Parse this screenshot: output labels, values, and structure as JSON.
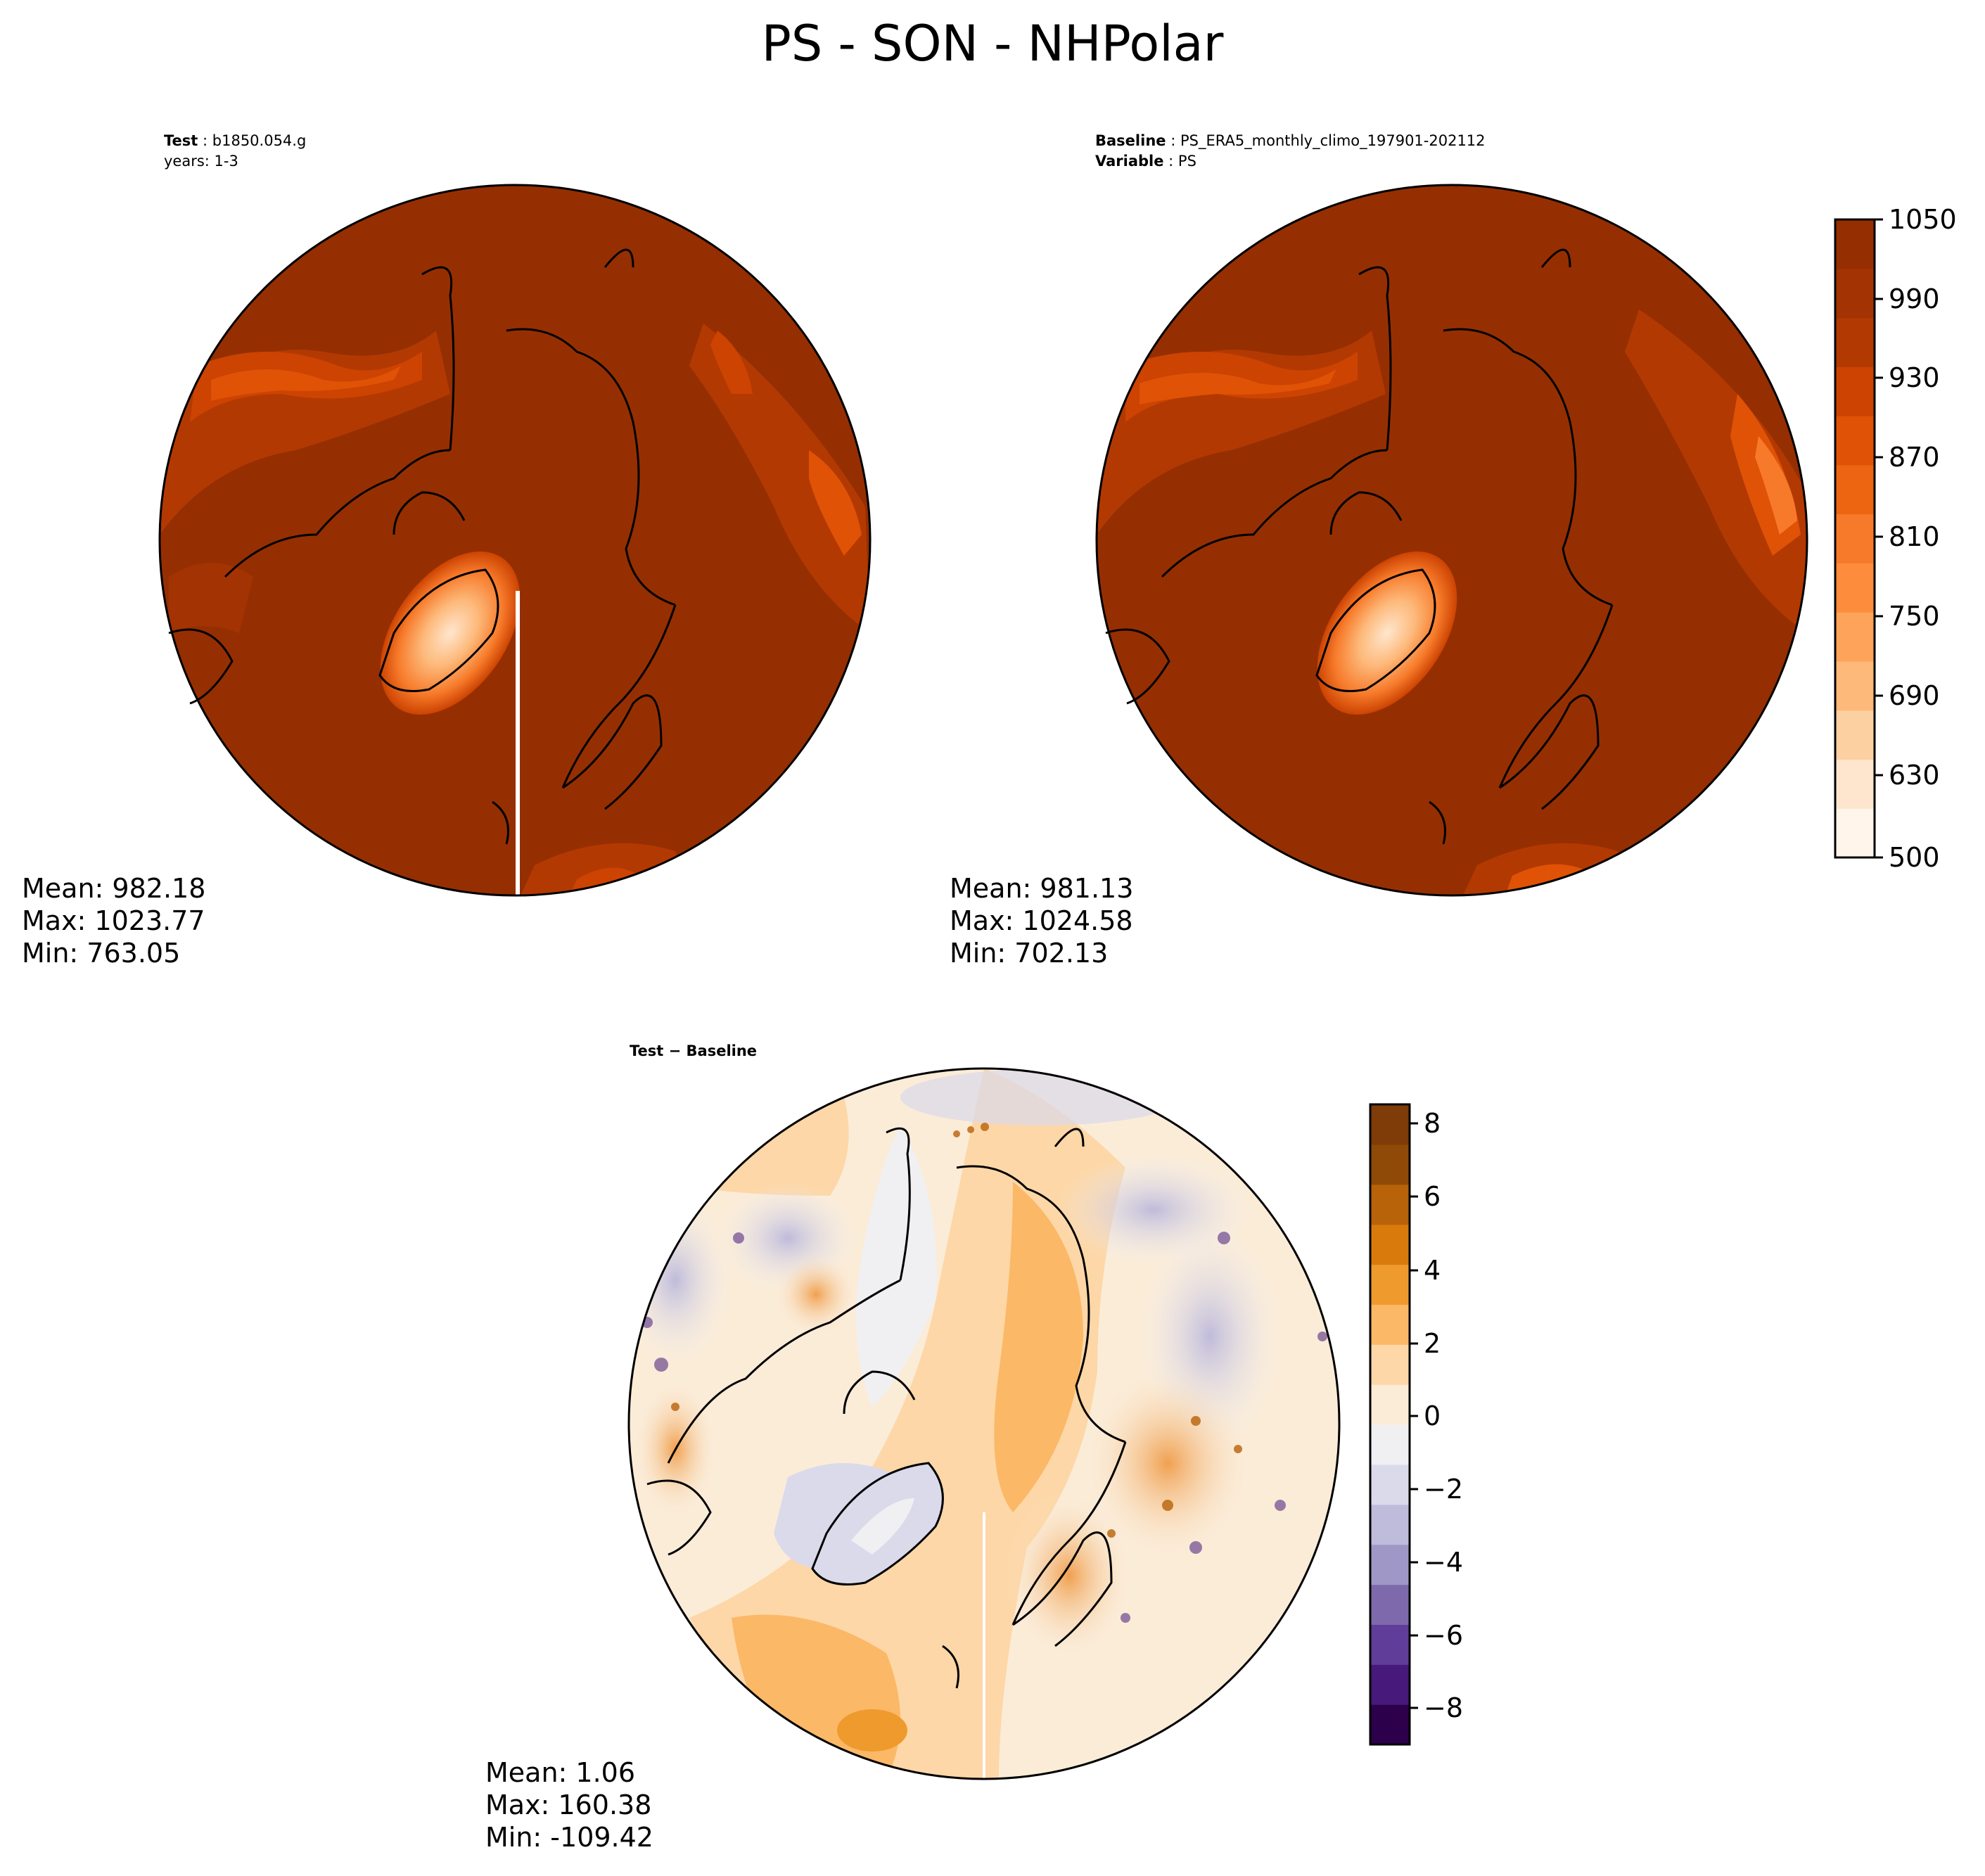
{
  "title": "PS - SON - NHPolar",
  "panels": {
    "test": {
      "label_key": "Test",
      "label_value": "b1850.054.g",
      "years": "years: 1-3",
      "mean": "Mean: 982.18",
      "max": "Max: 1023.77",
      "min": "Min: 763.05"
    },
    "baseline": {
      "label_key": "Baseline",
      "label_value": "PS_ERA5_monthly_climo_197901-202112",
      "variable_key": "Variable",
      "variable_value": "PS",
      "mean": "Mean: 981.13",
      "max": "Max: 1024.58",
      "min": "Min: 702.13"
    },
    "diff": {
      "label": "Test − Baseline",
      "mean": "Mean:  1.06",
      "max": "Max: 160.38",
      "min": "Min: -109.42"
    }
  },
  "colorbars": {
    "field": {
      "ticks": [
        "1050",
        "990",
        "930",
        "870",
        "810",
        "750",
        "690",
        "630",
        "500"
      ],
      "palette": [
        "#fff5eb",
        "#fee6ce",
        "#fdd0a2",
        "#fdb97a",
        "#fda35a",
        "#fd8d3c",
        "#f77a2a",
        "#ee6511",
        "#e05206",
        "#cc4302",
        "#b33902",
        "#a33303",
        "#952f02"
      ]
    },
    "diff": {
      "ticks": [
        "8",
        "6",
        "4",
        "2",
        "0",
        "−2",
        "−4",
        "−6",
        "−8"
      ],
      "palette": [
        "#2d004b",
        "#46197a",
        "#5f3d98",
        "#7e69ac",
        "#9f98c7",
        "#bfbbda",
        "#dadaeb",
        "#f0f0f3",
        "#fbecd8",
        "#fdd7a7",
        "#fbb867",
        "#ef9a2d",
        "#d97a0d",
        "#b8620a",
        "#8f4a07",
        "#7f3b08"
      ]
    }
  }
}
